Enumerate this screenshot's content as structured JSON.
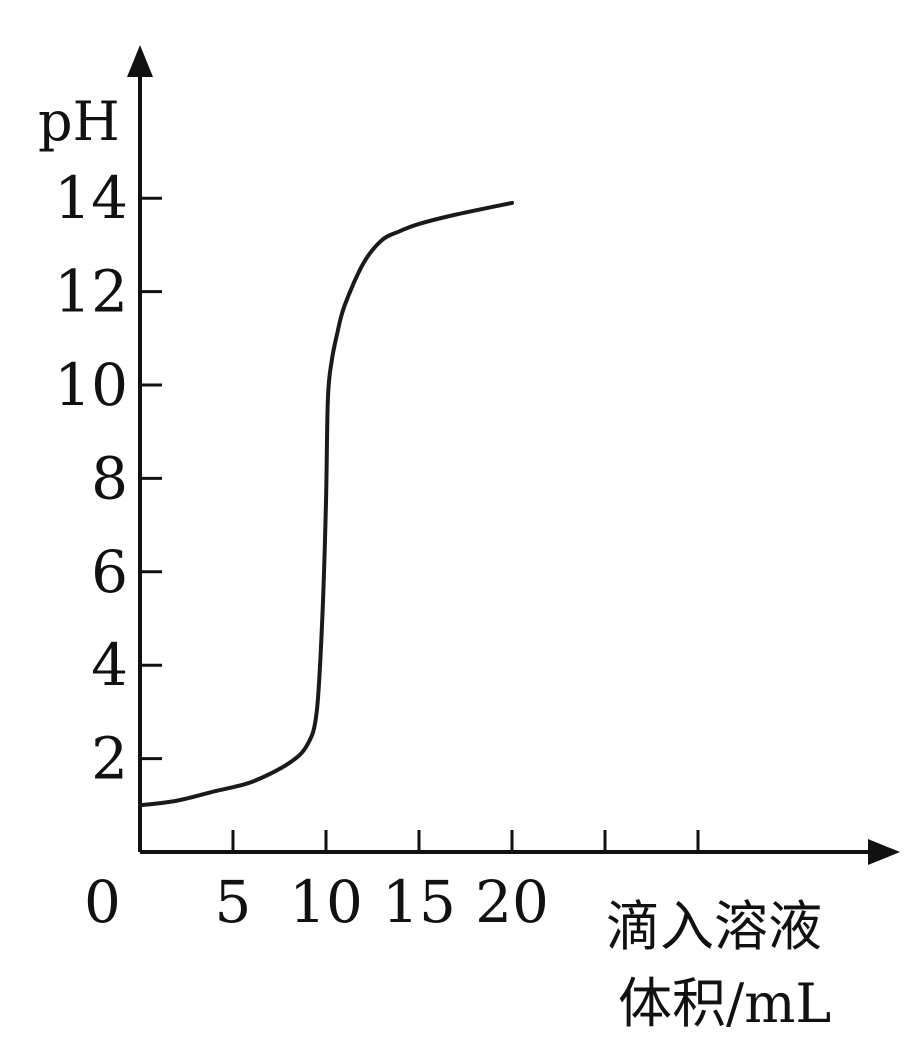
{
  "chart_data": {
    "type": "line",
    "ylabel": "pH",
    "xlabel_lines": [
      "滴入溶液",
      "体积/mL"
    ],
    "origin_label": "0",
    "xlim": [
      0,
      40
    ],
    "ylim": [
      0,
      15
    ],
    "x_tick_labels": [
      "5",
      "10",
      "15",
      "20"
    ],
    "x_tick_values": [
      5,
      10,
      15,
      20
    ],
    "x_extra_ticks": [
      25,
      30
    ],
    "y_tick_labels": [
      "2",
      "4",
      "6",
      "8",
      "10",
      "12",
      "14"
    ],
    "y_tick_values": [
      2,
      4,
      6,
      8,
      10,
      12,
      14
    ],
    "series": [
      {
        "x": [
          0,
          2,
          4,
          6,
          8,
          9,
          9.5,
          9.8,
          10,
          10.1,
          10.3,
          10.6,
          11,
          12,
          13,
          14,
          15,
          17,
          20
        ],
        "y": [
          1,
          1.1,
          1.3,
          1.5,
          1.9,
          2.3,
          3.0,
          5.0,
          7.5,
          9.7,
          10.5,
          11.1,
          11.7,
          12.6,
          13.1,
          13.3,
          13.45,
          13.65,
          13.9
        ]
      }
    ],
    "colors": {
      "line": "#1a1a1a",
      "axis": "#111111"
    }
  }
}
